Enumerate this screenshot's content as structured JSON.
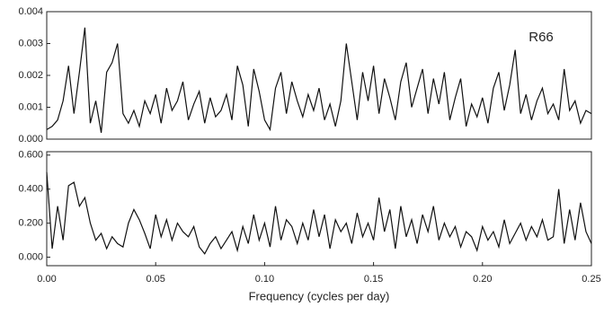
{
  "chart_data": [
    {
      "type": "line",
      "annotation": "R66",
      "xlim": [
        0,
        0.25
      ],
      "ylim": [
        0,
        0.004
      ],
      "yticks": [
        {
          "value": 0,
          "label": "0.000"
        },
        {
          "value": 0.001,
          "label": "0.001"
        },
        {
          "value": 0.002,
          "label": "0.002"
        },
        {
          "value": 0.003,
          "label": "0.003"
        },
        {
          "value": 0.004,
          "label": "0.004"
        }
      ],
      "series": [
        {
          "color": "#111111",
          "x": [
            0,
            0.0025,
            0.005,
            0.0075,
            0.01,
            0.0125,
            0.015,
            0.0175,
            0.02,
            0.0225,
            0.025,
            0.0275,
            0.03,
            0.0325,
            0.035,
            0.0375,
            0.04,
            0.0425,
            0.045,
            0.0475,
            0.05,
            0.0525,
            0.055,
            0.0575,
            0.06,
            0.0625,
            0.065,
            0.0675,
            0.07,
            0.0725,
            0.075,
            0.0775,
            0.08,
            0.0825,
            0.085,
            0.0875,
            0.09,
            0.0925,
            0.095,
            0.0975,
            0.1,
            0.1025,
            0.105,
            0.1075,
            0.11,
            0.1125,
            0.115,
            0.1175,
            0.12,
            0.1225,
            0.125,
            0.1275,
            0.13,
            0.1325,
            0.135,
            0.1375,
            0.14,
            0.1425,
            0.145,
            0.1475,
            0.15,
            0.1525,
            0.155,
            0.1575,
            0.16,
            0.1625,
            0.165,
            0.1675,
            0.17,
            0.1725,
            0.175,
            0.1775,
            0.18,
            0.1825,
            0.185,
            0.1875,
            0.19,
            0.1925,
            0.195,
            0.1975,
            0.2,
            0.2025,
            0.205,
            0.2075,
            0.21,
            0.2125,
            0.215,
            0.2175,
            0.22,
            0.2225,
            0.225,
            0.2275,
            0.23,
            0.2325,
            0.235,
            0.2375,
            0.24,
            0.2425,
            0.245,
            0.2475,
            0.25
          ],
          "values": [
            0.0003,
            0.0004,
            0.0006,
            0.0012,
            0.0023,
            0.0008,
            0.0021,
            0.0035,
            0.0005,
            0.0012,
            0.0002,
            0.0021,
            0.0024,
            0.003,
            0.0008,
            0.0005,
            0.0009,
            0.0004,
            0.0012,
            0.0008,
            0.0014,
            0.0005,
            0.0016,
            0.0009,
            0.0012,
            0.0018,
            0.0006,
            0.0011,
            0.0015,
            0.0005,
            0.0013,
            0.0007,
            0.0009,
            0.0014,
            0.0006,
            0.0023,
            0.0017,
            0.0004,
            0.0022,
            0.0015,
            0.0006,
            0.0003,
            0.0016,
            0.0021,
            0.0008,
            0.0018,
            0.0012,
            0.0007,
            0.0014,
            0.0009,
            0.0016,
            0.0006,
            0.0011,
            0.0004,
            0.0012,
            0.003,
            0.0018,
            0.0006,
            0.0021,
            0.0012,
            0.0023,
            0.0008,
            0.0019,
            0.0013,
            0.0006,
            0.0018,
            0.0024,
            0.001,
            0.0016,
            0.0022,
            0.0008,
            0.0019,
            0.0011,
            0.0021,
            0.0006,
            0.0013,
            0.0019,
            0.0004,
            0.0011,
            0.0007,
            0.0013,
            0.0005,
            0.0016,
            0.0021,
            0.0009,
            0.0017,
            0.0028,
            0.0008,
            0.0014,
            0.0006,
            0.0012,
            0.0016,
            0.0008,
            0.0011,
            0.0006,
            0.0022,
            0.0009,
            0.0012,
            0.0005,
            0.0009,
            0.0008
          ]
        }
      ]
    },
    {
      "type": "line",
      "xlabel": "Frequency (cycles per day)",
      "xlim": [
        0,
        0.25
      ],
      "ylim": [
        -0.05,
        0.62
      ],
      "xticks": [
        {
          "value": 0,
          "label": "0.00"
        },
        {
          "value": 0.05,
          "label": "0.05"
        },
        {
          "value": 0.1,
          "label": "0.10"
        },
        {
          "value": 0.15,
          "label": "0.15"
        },
        {
          "value": 0.2,
          "label": "0.20"
        },
        {
          "value": 0.25,
          "label": "0.25"
        }
      ],
      "yticks": [
        {
          "value": 0,
          "label": "0.000"
        },
        {
          "value": 0.2,
          "label": "0.200"
        },
        {
          "value": 0.4,
          "label": "0.400"
        },
        {
          "value": 0.6,
          "label": "0.600"
        }
      ],
      "series": [
        {
          "color": "#111111",
          "x": [
            0,
            0.0025,
            0.005,
            0.0075,
            0.01,
            0.0125,
            0.015,
            0.0175,
            0.02,
            0.0225,
            0.025,
            0.0275,
            0.03,
            0.0325,
            0.035,
            0.0375,
            0.04,
            0.0425,
            0.045,
            0.0475,
            0.05,
            0.0525,
            0.055,
            0.0575,
            0.06,
            0.0625,
            0.065,
            0.0675,
            0.07,
            0.0725,
            0.075,
            0.0775,
            0.08,
            0.0825,
            0.085,
            0.0875,
            0.09,
            0.0925,
            0.095,
            0.0975,
            0.1,
            0.1025,
            0.105,
            0.1075,
            0.11,
            0.1125,
            0.115,
            0.1175,
            0.12,
            0.1225,
            0.125,
            0.1275,
            0.13,
            0.1325,
            0.135,
            0.1375,
            0.14,
            0.1425,
            0.145,
            0.1475,
            0.15,
            0.1525,
            0.155,
            0.1575,
            0.16,
            0.1625,
            0.165,
            0.1675,
            0.17,
            0.1725,
            0.175,
            0.1775,
            0.18,
            0.1825,
            0.185,
            0.1875,
            0.19,
            0.1925,
            0.195,
            0.1975,
            0.2,
            0.2025,
            0.205,
            0.2075,
            0.21,
            0.2125,
            0.215,
            0.2175,
            0.22,
            0.2225,
            0.225,
            0.2275,
            0.23,
            0.2325,
            0.235,
            0.2375,
            0.24,
            0.2425,
            0.245,
            0.2475,
            0.25
          ],
          "values": [
            0.5,
            0.05,
            0.3,
            0.1,
            0.42,
            0.44,
            0.3,
            0.35,
            0.2,
            0.1,
            0.14,
            0.05,
            0.12,
            0.08,
            0.06,
            0.2,
            0.28,
            0.22,
            0.14,
            0.05,
            0.25,
            0.12,
            0.22,
            0.1,
            0.2,
            0.15,
            0.12,
            0.18,
            0.06,
            0.02,
            0.08,
            0.12,
            0.05,
            0.1,
            0.15,
            0.04,
            0.18,
            0.08,
            0.25,
            0.1,
            0.2,
            0.06,
            0.3,
            0.1,
            0.22,
            0.18,
            0.08,
            0.2,
            0.1,
            0.28,
            0.12,
            0.25,
            0.05,
            0.22,
            0.15,
            0.2,
            0.08,
            0.26,
            0.12,
            0.2,
            0.1,
            0.35,
            0.15,
            0.28,
            0.05,
            0.3,
            0.12,
            0.22,
            0.08,
            0.25,
            0.15,
            0.3,
            0.1,
            0.2,
            0.12,
            0.18,
            0.06,
            0.15,
            0.12,
            0.04,
            0.18,
            0.1,
            0.15,
            0.06,
            0.22,
            0.08,
            0.14,
            0.2,
            0.1,
            0.18,
            0.12,
            0.22,
            0.1,
            0.12,
            0.4,
            0.08,
            0.28,
            0.1,
            0.32,
            0.15,
            0.08
          ]
        }
      ]
    }
  ]
}
